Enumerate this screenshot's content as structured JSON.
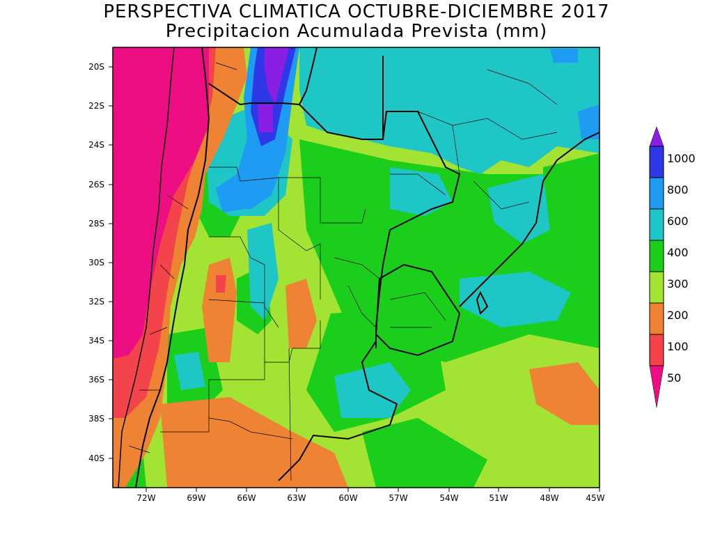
{
  "title": "PERSPECTIVA CLIMATICA OCTUBRE-DICIEMBRE 2017",
  "subtitle": "Precipitacion Acumulada Prevista (mm)",
  "latitude_labels": [
    "20S",
    "22S",
    "24S",
    "26S",
    "28S",
    "30S",
    "32S",
    "34S",
    "36S",
    "38S",
    "40S"
  ],
  "longitude_labels": [
    "72W",
    "69W",
    "66W",
    "63W",
    "60W",
    "57W",
    "54W",
    "51W",
    "48W",
    "45W"
  ],
  "legend": {
    "levels": [
      "1000",
      "800",
      "600",
      "400",
      "300",
      "200",
      "100",
      "50"
    ],
    "colors": {
      "lt50": "#ee0e84",
      "b50_100": "#f2444a",
      "b100_200": "#ee8433",
      "b200_300": "#a2e333",
      "b300_400": "#1cce1c",
      "b400_600": "#1ec6c6",
      "b600_800": "#1e9bf2",
      "b800_1000": "#2e38e6",
      "gt1000": "#8a1ee2"
    }
  }
}
